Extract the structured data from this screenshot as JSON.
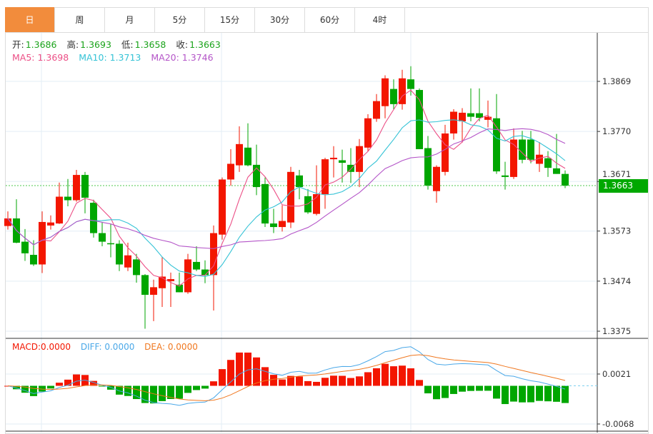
{
  "tabs": [
    {
      "label": "日",
      "active": true
    },
    {
      "label": "周"
    },
    {
      "label": "月"
    },
    {
      "label": "5分"
    },
    {
      "label": "15分"
    },
    {
      "label": "30分"
    },
    {
      "label": "60分"
    },
    {
      "label": "4时"
    }
  ],
  "ohlc": {
    "open_label": "开:",
    "open": "1.3686",
    "high_label": "高:",
    "high": "1.3693",
    "low_label": "低:",
    "low": "1.3658",
    "close_label": "收:",
    "close": "1.3663"
  },
  "ma": {
    "ma5_label": "MA5: 1.3698",
    "ma10_label": "MA10: 1.3713",
    "ma20_label": "MA20: 1.3746"
  },
  "macd": {
    "macd_label": "MACD:0.0000",
    "diff_label": "DIFF: 0.0000",
    "dea_label": "DEA: 0.0000"
  },
  "current_price": "1.3663",
  "colors": {
    "up": "#f31600",
    "down": "#00a600",
    "ma5": "#ec4f86",
    "ma10": "#35c3d6",
    "ma20": "#b455c8",
    "diff": "#4aa8e8",
    "dea": "#f07820",
    "active_tab": "#f28c3c"
  },
  "chart_data": {
    "type": "candlestick",
    "price_axis": {
      "ticks": [
        "1.3869",
        "1.3770",
        "1.3671",
        "1.3573",
        "1.3474",
        "1.3375"
      ],
      "range": [
        1.3375,
        1.3869
      ]
    },
    "macd_axis": {
      "ticks": [
        "0.0021",
        "-0.0068"
      ]
    },
    "candles": [
      [
        1.3583,
        1.3612,
        1.3576,
        1.3598
      ],
      [
        1.3598,
        1.3636,
        1.3549,
        1.355
      ],
      [
        1.3552,
        1.3577,
        1.3514,
        1.3529
      ],
      [
        1.3526,
        1.3555,
        1.3504,
        1.3507
      ],
      [
        1.3507,
        1.3612,
        1.349,
        1.3591
      ],
      [
        1.3584,
        1.3604,
        1.3576,
        1.359
      ],
      [
        1.3588,
        1.3669,
        1.3587,
        1.3641
      ],
      [
        1.3641,
        1.3676,
        1.3622,
        1.3634
      ],
      [
        1.3634,
        1.3694,
        1.3631,
        1.3684
      ],
      [
        1.3684,
        1.369,
        1.3608,
        1.3639
      ],
      [
        1.3629,
        1.3635,
        1.356,
        1.3569
      ],
      [
        1.3569,
        1.3591,
        1.3543,
        1.3552
      ],
      [
        1.3549,
        1.3587,
        1.3521,
        1.3548
      ],
      [
        1.3548,
        1.3555,
        1.3494,
        1.3507
      ],
      [
        1.3501,
        1.355,
        1.3494,
        1.3525
      ],
      [
        1.3517,
        1.3528,
        1.3471,
        1.3486
      ],
      [
        1.3486,
        1.3488,
        1.338,
        1.3447
      ],
      [
        1.3447,
        1.3477,
        1.3395,
        1.3462
      ],
      [
        1.346,
        1.3522,
        1.3423,
        1.3483
      ],
      [
        1.3474,
        1.3491,
        1.3423,
        1.3478
      ],
      [
        1.3467,
        1.3491,
        1.3452,
        1.3452
      ],
      [
        1.3452,
        1.3528,
        1.3449,
        1.3517
      ],
      [
        1.3512,
        1.3543,
        1.3494,
        1.3497
      ],
      [
        1.3497,
        1.3515,
        1.347,
        1.3486
      ],
      [
        1.3486,
        1.3584,
        1.3416,
        1.3569
      ],
      [
        1.3566,
        1.3679,
        1.3556,
        1.3675
      ],
      [
        1.3675,
        1.3735,
        1.3663,
        1.3706
      ],
      [
        1.3703,
        1.378,
        1.369,
        1.3745
      ],
      [
        1.3738,
        1.3786,
        1.3701,
        1.3703
      ],
      [
        1.3704,
        1.3744,
        1.3644,
        1.366
      ],
      [
        1.3666,
        1.3679,
        1.3581,
        1.3588
      ],
      [
        1.3588,
        1.3617,
        1.3569,
        1.3581
      ],
      [
        1.3581,
        1.3624,
        1.3572,
        1.3593
      ],
      [
        1.359,
        1.37,
        1.3579,
        1.369
      ],
      [
        1.3683,
        1.3694,
        1.3636,
        1.366
      ],
      [
        1.3642,
        1.3656,
        1.3607,
        1.361
      ],
      [
        1.3607,
        1.3703,
        1.3604,
        1.3646
      ],
      [
        1.3646,
        1.3718,
        1.3617,
        1.3715
      ],
      [
        1.3715,
        1.3741,
        1.3679,
        1.3718
      ],
      [
        1.3713,
        1.3734,
        1.3669,
        1.3708
      ],
      [
        1.3704,
        1.3737,
        1.3668,
        1.369
      ],
      [
        1.369,
        1.3755,
        1.366,
        1.3741
      ],
      [
        1.3738,
        1.3804,
        1.373,
        1.3796
      ],
      [
        1.3795,
        1.3844,
        1.3789,
        1.383
      ],
      [
        1.382,
        1.3881,
        1.3796,
        1.3875
      ],
      [
        1.3854,
        1.3873,
        1.3813,
        1.3824
      ],
      [
        1.3824,
        1.3892,
        1.3813,
        1.3875
      ],
      [
        1.3873,
        1.3899,
        1.3841,
        1.3854
      ],
      [
        1.3852,
        1.3855,
        1.3735,
        1.3735
      ],
      [
        1.3737,
        1.3761,
        1.3655,
        1.3663
      ],
      [
        1.3652,
        1.3703,
        1.3629,
        1.37
      ],
      [
        1.369,
        1.3783,
        1.3683,
        1.3766
      ],
      [
        1.3766,
        1.3814,
        1.3754,
        1.3809
      ],
      [
        1.379,
        1.3816,
        1.3748,
        1.3807
      ],
      [
        1.3806,
        1.3855,
        1.379,
        1.3799
      ],
      [
        1.3806,
        1.3855,
        1.379,
        1.3797
      ],
      [
        1.3793,
        1.3831,
        1.3778,
        1.3799
      ],
      [
        1.3796,
        1.3844,
        1.3686,
        1.3691
      ],
      [
        1.3683,
        1.371,
        1.3655,
        1.368
      ],
      [
        1.368,
        1.3776,
        1.3676,
        1.3754
      ],
      [
        1.3754,
        1.3771,
        1.3707,
        1.3714
      ],
      [
        1.3754,
        1.3771,
        1.3707,
        1.3714
      ],
      [
        1.3706,
        1.3749,
        1.369,
        1.3724
      ],
      [
        1.3717,
        1.3731,
        1.368,
        1.3698
      ],
      [
        1.3697,
        1.3765,
        1.3686,
        1.3686
      ],
      [
        1.3686,
        1.3693,
        1.3658,
        1.3663
      ]
    ],
    "candle_format": [
      "open",
      "high",
      "low",
      "close"
    ],
    "indicators": [
      "MA5",
      "MA10",
      "MA20",
      "MACD(12,26,9)"
    ]
  }
}
